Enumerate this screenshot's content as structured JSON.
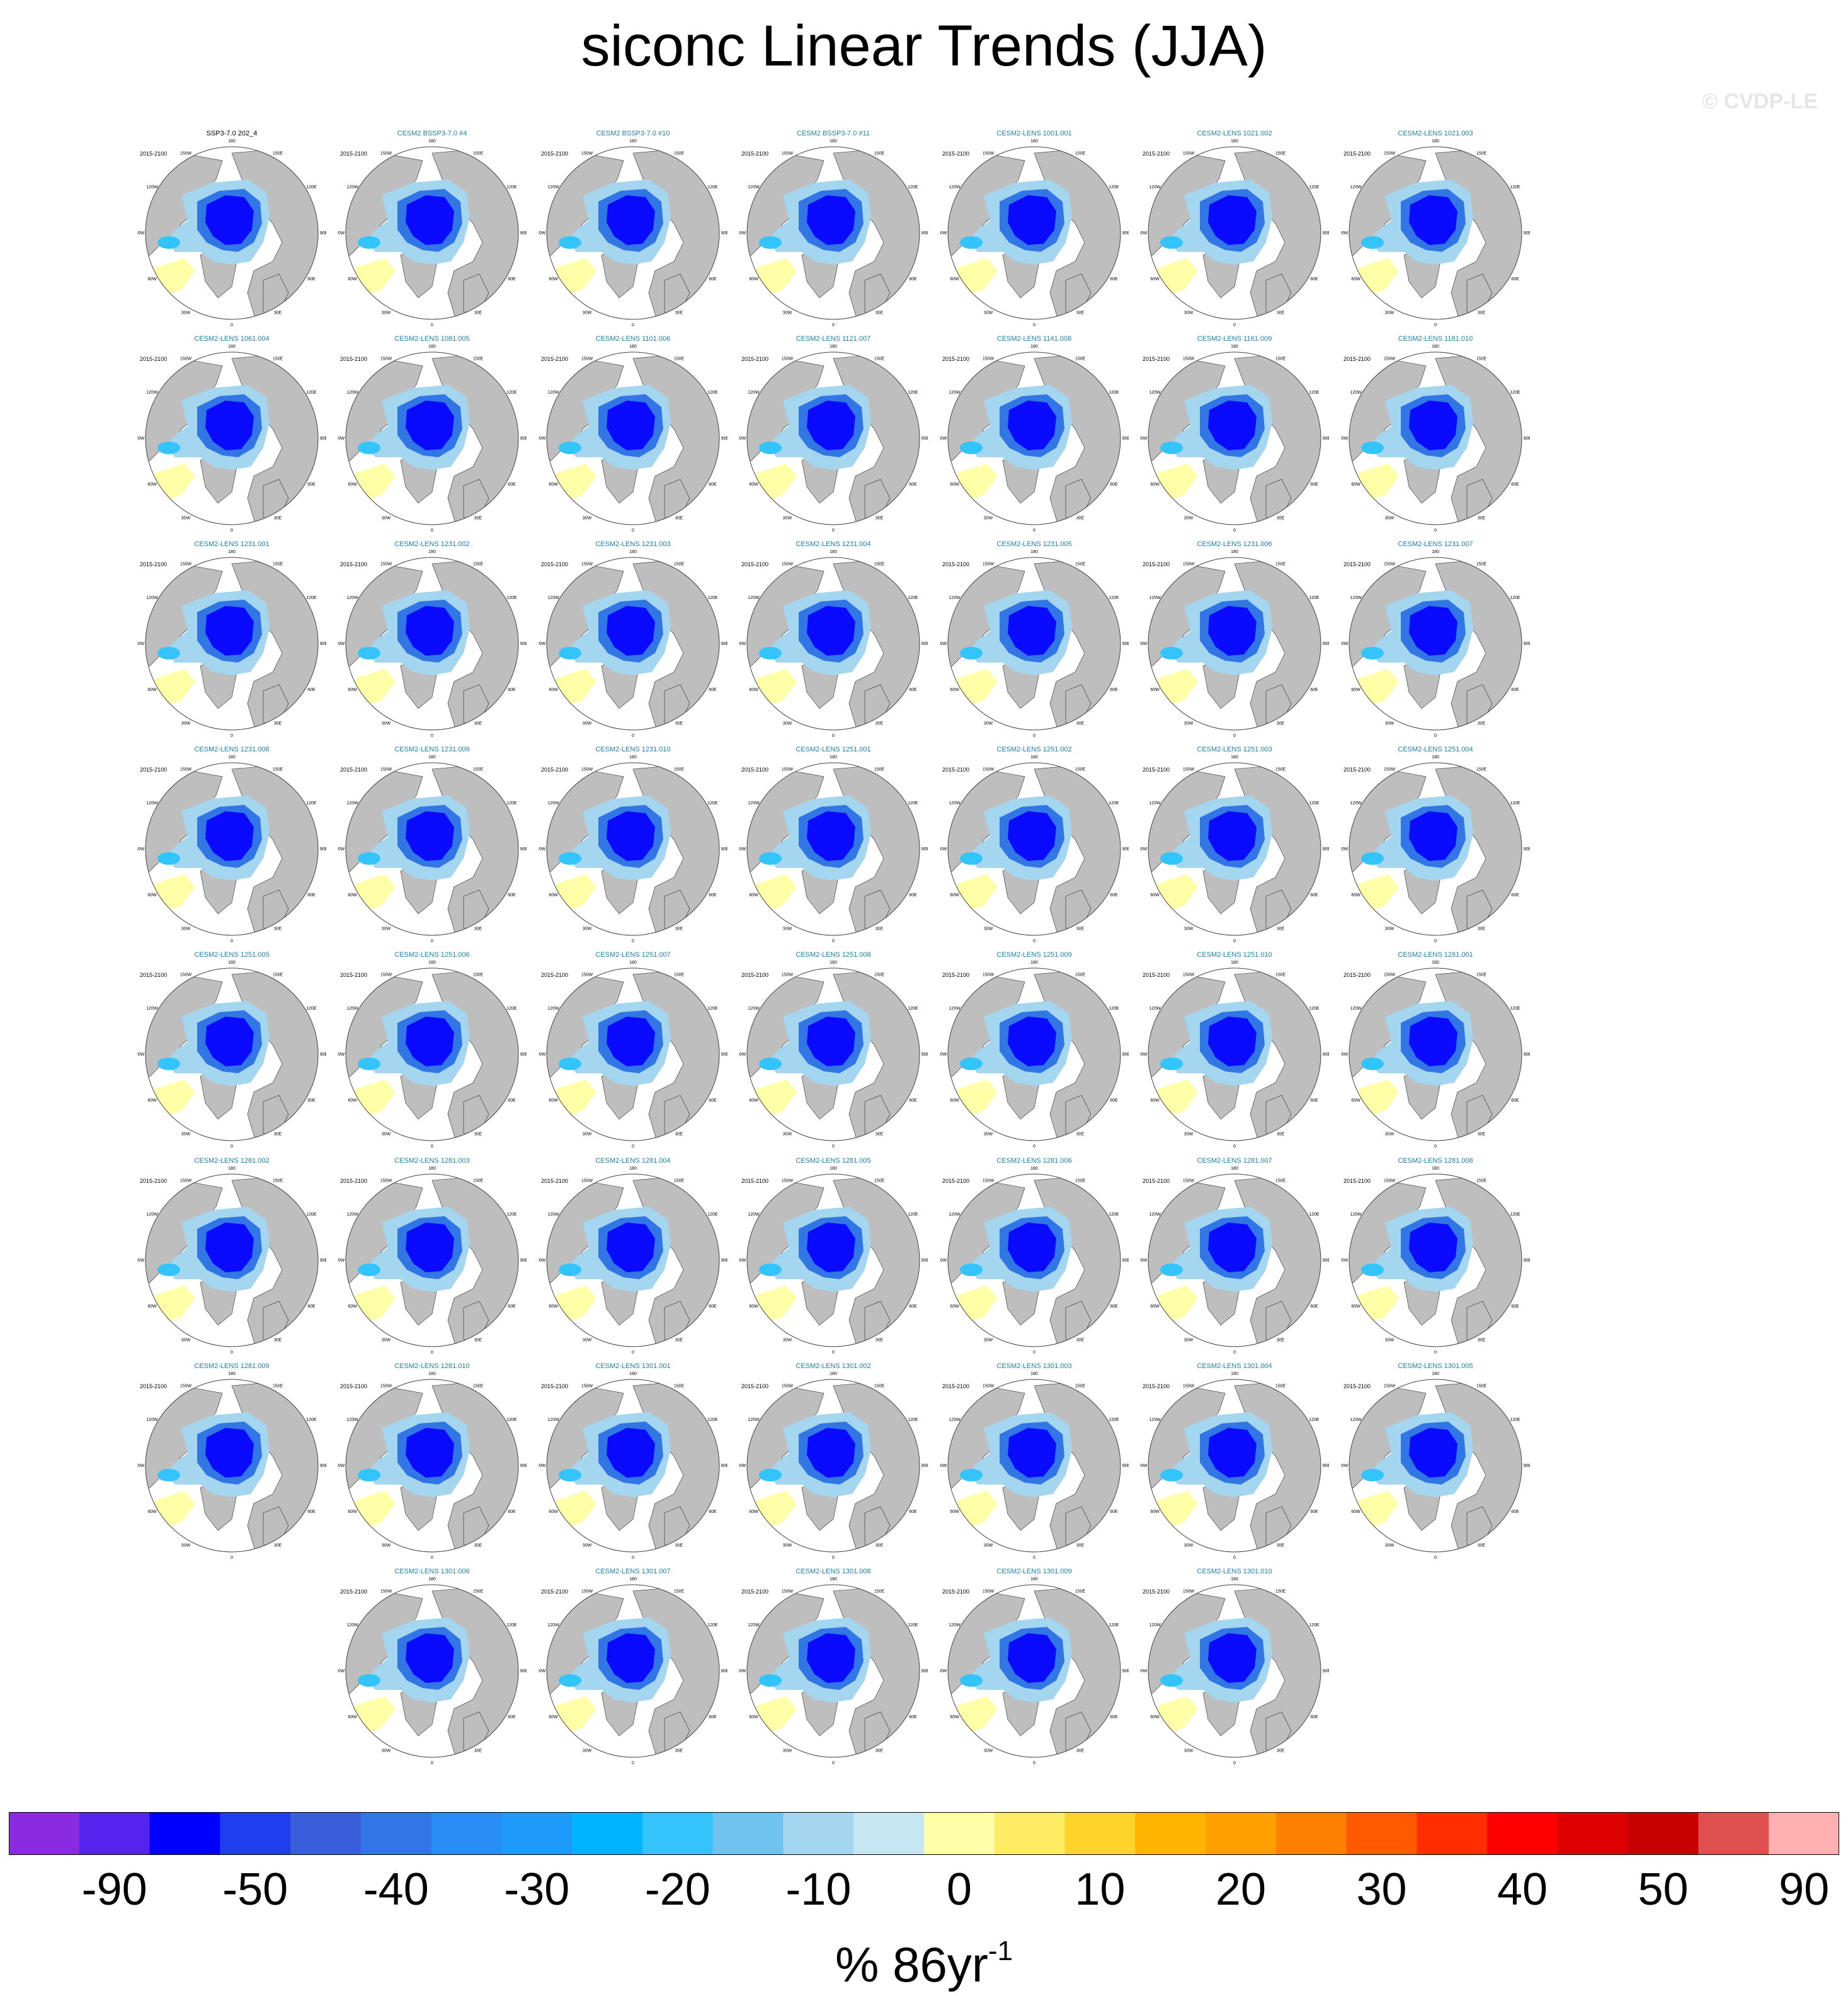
{
  "title": "siconc Linear Trends (JJA)",
  "watermark": "© CVDP-LE",
  "period_label": "2015-2100",
  "units": {
    "base": "% 86yr",
    "exponent": "-1"
  },
  "chart_data": {
    "type": "heatmap",
    "projection": "north-polar-stereographic",
    "variable": "siconc",
    "season": "JJA",
    "longitude_labels": [
      "180",
      "150E",
      "120E",
      "90E",
      "60E",
      "30E",
      "0",
      "30W",
      "60W",
      "90W",
      "120W",
      "150W"
    ],
    "panels": [
      {
        "title": "SSP3-7.0 202_4",
        "style": "obs"
      },
      {
        "title": "CESM2 BSSP3-7.0 #4"
      },
      {
        "title": "CESM2 BSSP3-7.0 #10"
      },
      {
        "title": "CESM2 BSSP3-7.0 #11"
      },
      {
        "title": "CESM2-LENS 1001.001"
      },
      {
        "title": "CESM2-LENS 1021.002"
      },
      {
        "title": "CESM2-LENS 1021.003"
      },
      {
        "title": "CESM2-LENS 1061.004"
      },
      {
        "title": "CESM2-LENS 1081.005"
      },
      {
        "title": "CESM2-LENS 1101.006"
      },
      {
        "title": "CESM2-LENS 1121.007"
      },
      {
        "title": "CESM2-LENS 1141.008"
      },
      {
        "title": "CESM2-LENS 1161.009"
      },
      {
        "title": "CESM2-LENS 1181.010"
      },
      {
        "title": "CESM2-LENS 1231.001"
      },
      {
        "title": "CESM2-LENS 1231.002"
      },
      {
        "title": "CESM2-LENS 1231.003"
      },
      {
        "title": "CESM2-LENS 1231.004"
      },
      {
        "title": "CESM2-LENS 1231.005"
      },
      {
        "title": "CESM2-LENS 1231.006"
      },
      {
        "title": "CESM2-LENS 1231.007"
      },
      {
        "title": "CESM2-LENS 1231.008"
      },
      {
        "title": "CESM2-LENS 1231.009"
      },
      {
        "title": "CESM2-LENS 1231.010"
      },
      {
        "title": "CESM2-LENS 1251.001"
      },
      {
        "title": "CESM2-LENS 1251.002"
      },
      {
        "title": "CESM2-LENS 1251.003"
      },
      {
        "title": "CESM2-LENS 1251.004"
      },
      {
        "title": "CESM2-LENS 1251.005"
      },
      {
        "title": "CESM2-LENS 1251.006"
      },
      {
        "title": "CESM2-LENS 1251.007"
      },
      {
        "title": "CESM2-LENS 1251.008"
      },
      {
        "title": "CESM2-LENS 1251.009"
      },
      {
        "title": "CESM2-LENS 1251.010"
      },
      {
        "title": "CESM2-LENS 1281.001"
      },
      {
        "title": "CESM2-LENS 1281.002"
      },
      {
        "title": "CESM2-LENS 1281.003"
      },
      {
        "title": "CESM2-LENS 1281.004"
      },
      {
        "title": "CESM2-LENS 1281.005"
      },
      {
        "title": "CESM2-LENS 1281.006"
      },
      {
        "title": "CESM2-LENS 1281.007"
      },
      {
        "title": "CESM2-LENS 1281.008"
      },
      {
        "title": "CESM2-LENS 1281.009"
      },
      {
        "title": "CESM2-LENS 1281.010"
      },
      {
        "title": "CESM2-LENS 1301.001"
      },
      {
        "title": "CESM2-LENS 1301.002"
      },
      {
        "title": "CESM2-LENS 1301.003"
      },
      {
        "title": "CESM2-LENS 1301.004"
      },
      {
        "title": "CESM2-LENS 1301.005"
      },
      {
        "title": "CESM2-LENS 1301.006"
      },
      {
        "title": "CESM2-LENS 1301.007"
      },
      {
        "title": "CESM2-LENS 1301.008"
      },
      {
        "title": "CESM2-LENS 1301.009"
      },
      {
        "title": "CESM2-LENS 1301.010"
      }
    ],
    "colorbar": {
      "colors": [
        "#8a2be2",
        "#5522ee",
        "#0000ff",
        "#1f3fef",
        "#3a5ddc",
        "#3276e6",
        "#2a8cf7",
        "#1e9bfa",
        "#00b4ff",
        "#33c4fb",
        "#70c2ef",
        "#a4d6ef",
        "#c6e6f4",
        "#ffffa8",
        "#ffec64",
        "#ffd42a",
        "#ffb400",
        "#ff9f00",
        "#ff7f00",
        "#ff5a00",
        "#ff2d00",
        "#ff0000",
        "#de0000",
        "#c80000",
        "#e05050",
        "#ffb0b0"
      ],
      "tick_labels": [
        "-90",
        "-50",
        "-40",
        "-30",
        "-20",
        "-10",
        "0",
        "10",
        "20",
        "30",
        "40",
        "50",
        "90"
      ]
    },
    "colors": {
      "land": "#bebebe",
      "ocean_no_trend": "#ffffff",
      "deep_loss": "#0a0aff",
      "title_models": "#1a7fa8",
      "title_obs": "#000000"
    }
  }
}
